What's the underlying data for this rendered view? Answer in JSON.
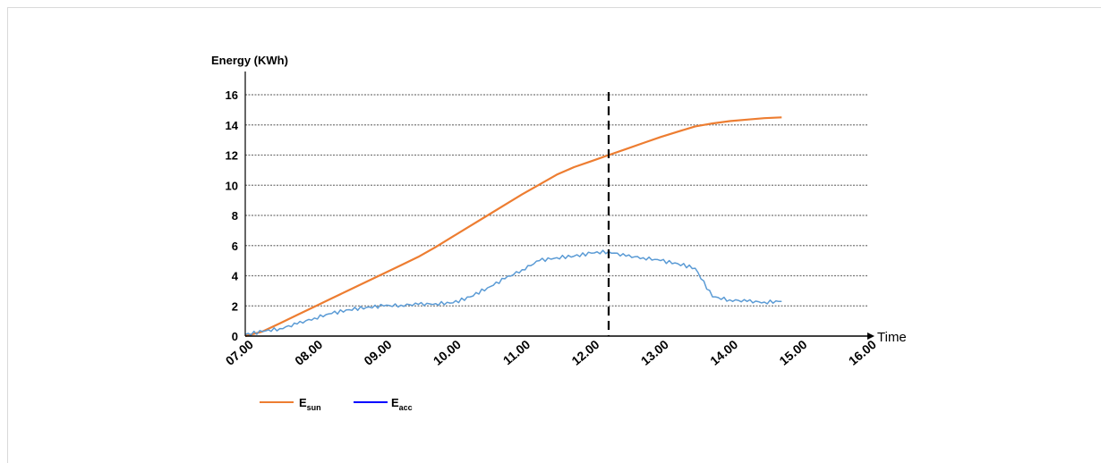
{
  "chart_data": {
    "type": "line",
    "ylabel": "Energy (KWh)",
    "xlabel": "Time",
    "x_ticks": [
      "07.00",
      "08.00",
      "09.00",
      "10.00",
      "11.00",
      "12.00",
      "13.00",
      "14.00",
      "15.00",
      "16.00"
    ],
    "xlim": [
      7,
      16
    ],
    "ylim": [
      0,
      16
    ],
    "y_ticks": [
      0,
      2,
      4,
      6,
      8,
      10,
      12,
      14,
      16
    ],
    "grid": "horizontal dotted",
    "vline_x": 12.25,
    "legend_position": "bottom-left",
    "series": [
      {
        "name": "E",
        "sub": "sun",
        "color": "#ed7d31",
        "x": [
          7.0,
          7.25,
          7.5,
          7.75,
          8.0,
          8.25,
          8.5,
          8.75,
          9.0,
          9.25,
          9.5,
          9.75,
          10.0,
          10.25,
          10.5,
          10.75,
          11.0,
          11.25,
          11.5,
          11.75,
          12.0,
          12.25,
          12.5,
          12.75,
          13.0,
          13.25,
          13.5,
          13.75,
          14.0,
          14.25,
          14.5,
          14.75
        ],
        "values": [
          0,
          0.3,
          0.85,
          1.4,
          1.95,
          2.5,
          3.05,
          3.6,
          4.15,
          4.7,
          5.25,
          5.9,
          6.6,
          7.3,
          8.0,
          8.7,
          9.4,
          10.05,
          10.7,
          11.2,
          11.6,
          12.0,
          12.4,
          12.8,
          13.2,
          13.55,
          13.9,
          14.1,
          14.25,
          14.35,
          14.45,
          14.5
        ]
      },
      {
        "name": "E",
        "sub": "acc",
        "color": "#5b9bd5",
        "legend_color": "#0000ff",
        "x": [
          7.0,
          7.25,
          7.5,
          7.75,
          8.0,
          8.25,
          8.5,
          8.75,
          9.0,
          9.25,
          9.5,
          9.75,
          10.0,
          10.25,
          10.5,
          10.75,
          11.0,
          11.25,
          11.5,
          11.75,
          12.0,
          12.25,
          12.5,
          12.75,
          13.0,
          13.25,
          13.5,
          13.75,
          14.0,
          14.25,
          14.5,
          14.75
        ],
        "values": [
          0.1,
          0.3,
          0.5,
          0.8,
          1.2,
          1.5,
          1.75,
          1.9,
          2.0,
          2.05,
          2.1,
          2.15,
          2.2,
          2.6,
          3.2,
          3.8,
          4.4,
          5.0,
          5.2,
          5.3,
          5.5,
          5.6,
          5.3,
          5.2,
          5.0,
          4.8,
          4.5,
          2.6,
          2.4,
          2.3,
          2.25,
          2.3
        ]
      }
    ]
  }
}
